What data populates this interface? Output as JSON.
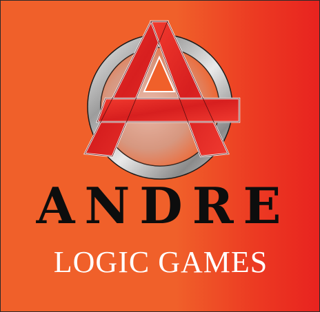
{
  "logo": {
    "emblem_icon": "letter-a-ring-icon",
    "brand_name": "ANDRE",
    "tagline": "LOGIC GAMES",
    "colors": {
      "background_orange": "#f0602a",
      "background_red": "#e8231f",
      "ring_silver": "#c8c8c8",
      "letter_red": "#e52424",
      "brand_text": "#0d0d0d",
      "tagline_text": "#ffffff"
    }
  }
}
